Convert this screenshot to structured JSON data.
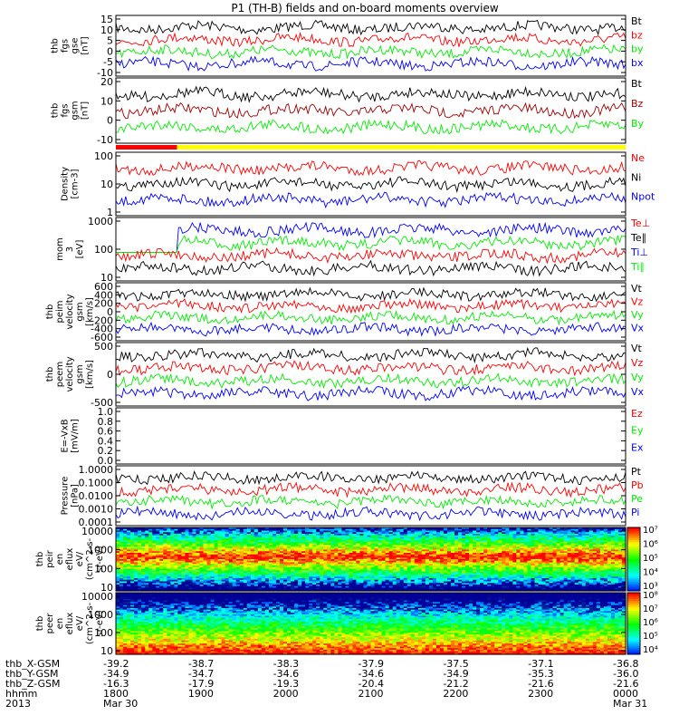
{
  "title": "P1 (TH-B) fields and on-board moments overview",
  "colors": {
    "black": "#000000",
    "red": "#ff0000",
    "darkred": "#a00000",
    "green": "#00ee00",
    "blue": "#0000ff",
    "yellow": "#ffff00"
  },
  "chart_data": [
    {
      "type": "line",
      "ylabel": [
        "thb",
        "fgs",
        "gse",
        "[nT]"
      ],
      "yticks": [
        "15",
        "10",
        "5",
        "0",
        "-5",
        "-10"
      ],
      "legend": [
        {
          "name": "Bt",
          "color": "black"
        },
        {
          "name": "bz",
          "color": "red"
        },
        {
          "name": "by",
          "color": "green"
        },
        {
          "name": "bx",
          "color": "blue"
        }
      ],
      "series": [
        {
          "name": "Bt",
          "base": 7
        },
        {
          "name": "bz",
          "base": -2
        },
        {
          "name": "by",
          "base": 1
        },
        {
          "name": "bx",
          "base": -4
        }
      ]
    },
    {
      "type": "line",
      "ylabel": [
        "thb",
        "fgs",
        "gsm",
        "[nT]"
      ],
      "yticks": [
        "20",
        "10",
        "0",
        "-10"
      ],
      "legend": [
        {
          "name": "Bt",
          "color": "black"
        },
        {
          "name": "Bz",
          "color": "darkred"
        },
        {
          "name": "By",
          "color": "green"
        }
      ],
      "series": [
        {
          "name": "Bt",
          "base": 12
        },
        {
          "name": "Bz",
          "base": 10
        },
        {
          "name": "By",
          "base": -4
        }
      ]
    },
    {
      "type": "line",
      "ylabel": [
        "Density",
        "[cm-3]"
      ],
      "yticks": [
        "100",
        "10",
        "1"
      ],
      "log": true,
      "legend": [
        {
          "name": "Ne",
          "color": "red"
        },
        {
          "name": "Ni",
          "color": "black"
        },
        {
          "name": "Npot",
          "color": "blue"
        }
      ],
      "series": [
        {
          "name": "Ne",
          "base": 6
        },
        {
          "name": "Ni",
          "base": 4
        },
        {
          "name": "Npot",
          "base": 2
        }
      ]
    },
    {
      "type": "line",
      "ylabel": [
        "mom",
        "3",
        "[eV]"
      ],
      "yticks": [
        "1000",
        "100",
        "10"
      ],
      "log": true,
      "legend": [
        {
          "name": "Te⊥",
          "color": "red"
        },
        {
          "name": "Te∥",
          "color": "black"
        },
        {
          "name": "Ti⊥",
          "color": "blue"
        },
        {
          "name": "Ti∥",
          "color": "green"
        }
      ],
      "series": [
        {
          "name": "Ti⊥",
          "base": 1200
        },
        {
          "name": "Ti∥",
          "base": 1000
        },
        {
          "name": "Te⊥",
          "base": 40
        },
        {
          "name": "Te∥",
          "base": 30
        }
      ]
    },
    {
      "type": "line",
      "ylabel": [
        "thb",
        "peim",
        "velocity",
        "gsm",
        "[km/s]"
      ],
      "yticks": [
        "600",
        "400",
        "200",
        "0",
        "-200",
        "-400",
        "-600"
      ],
      "legend": [
        {
          "name": "Vt",
          "color": "black"
        },
        {
          "name": "Vz",
          "color": "red"
        },
        {
          "name": "Vy",
          "color": "green"
        },
        {
          "name": "Vx",
          "color": "blue"
        }
      ],
      "series": [
        {
          "name": "Vt",
          "base": 480
        },
        {
          "name": "Vz",
          "base": -60
        },
        {
          "name": "Vy",
          "base": -50
        },
        {
          "name": "Vx",
          "base": -480
        }
      ]
    },
    {
      "type": "line",
      "ylabel": [
        "thb",
        "peem",
        "velocity",
        "gsm",
        "[km/s]"
      ],
      "yticks": [
        "500",
        "0",
        "-500"
      ],
      "legend": [
        {
          "name": "Vt",
          "color": "black"
        },
        {
          "name": "Vz",
          "color": "red"
        },
        {
          "name": "Vy",
          "color": "green"
        },
        {
          "name": "Vx",
          "color": "blue"
        }
      ],
      "series": [
        {
          "name": "Vt",
          "base": 500
        },
        {
          "name": "Vz",
          "base": 50
        },
        {
          "name": "Vy",
          "base": 0
        },
        {
          "name": "Vx",
          "base": -450
        }
      ]
    },
    {
      "type": "line",
      "ylabel": [
        "E=-VxB",
        "[mV/m]"
      ],
      "yticks": [
        "1.0",
        "0.8",
        "0.6",
        "0.4",
        "0.2",
        "0.0"
      ],
      "legend": [
        {
          "name": "Ez",
          "color": "red"
        },
        {
          "name": "Ey",
          "color": "green"
        },
        {
          "name": "Ex",
          "color": "blue"
        }
      ],
      "series": []
    },
    {
      "type": "line",
      "ylabel": [
        "Pressure",
        "[nPa]"
      ],
      "yticks": [
        "1.0000",
        "0.1000",
        "0.0100",
        "0.0010",
        "0.0001"
      ],
      "log": true,
      "legend": [
        {
          "name": "Pt",
          "color": "black"
        },
        {
          "name": "Pb",
          "color": "red"
        },
        {
          "name": "Pe",
          "color": "green"
        },
        {
          "name": "Pi",
          "color": "blue"
        }
      ],
      "series": [
        {
          "name": "Pt",
          "base": 0.2
        },
        {
          "name": "Pb",
          "base": 0.01
        },
        {
          "name": "Pe",
          "base": 0.03
        },
        {
          "name": "Pi",
          "base": 0.15
        }
      ]
    },
    {
      "type": "heatmap",
      "ylabel": [
        "thb",
        "peir",
        "en",
        "eflux",
        "eV/",
        "(cm^2-s-",
        "sr-eV)"
      ],
      "yticks": [
        "10000",
        "1000",
        "100",
        "10"
      ],
      "colorbar": [
        "10⁷",
        "10⁶",
        "10⁵",
        "10⁴",
        "10³"
      ]
    },
    {
      "type": "heatmap",
      "ylabel": [
        "thb",
        "peer",
        "en",
        "eflux",
        "eV/",
        "(cm^2-s-",
        "sr-eV)"
      ],
      "yticks": [
        "10000",
        "1000",
        "100",
        "10"
      ],
      "colorbar": [
        "10⁸",
        "10⁷",
        "10⁶",
        "10⁵",
        "10⁴"
      ]
    }
  ],
  "mode_bar": {
    "red_until_fraction": 0.12
  },
  "x_axis": {
    "row_labels": [
      "thb_X-GSM",
      "thb_Y-GSM",
      "thb_Z-GSM",
      "hhmm",
      "2013"
    ],
    "columns": [
      [
        "-39.2",
        "-34.9",
        "-16.3",
        "1800",
        "Mar 30"
      ],
      [
        "-38.7",
        "-34.7",
        "-17.9",
        "1900",
        ""
      ],
      [
        "-38.3",
        "-34.6",
        "-19.3",
        "2000",
        ""
      ],
      [
        "-37.9",
        "-34.6",
        "-20.4",
        "2100",
        ""
      ],
      [
        "-37.5",
        "-34.9",
        "-21.2",
        "2200",
        ""
      ],
      [
        "-37.1",
        "-35.3",
        "-21.6",
        "2300",
        ""
      ],
      [
        "-36.8",
        "-36.0",
        "-21.6",
        "0000",
        "Mar 31"
      ]
    ]
  }
}
